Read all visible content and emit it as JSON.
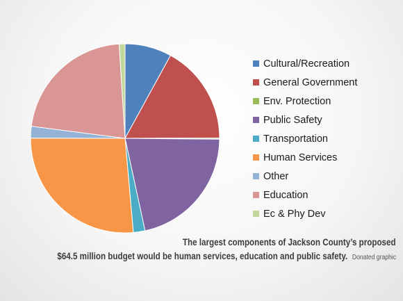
{
  "chart_data": {
    "type": "pie",
    "title": "",
    "legend_position": "right",
    "slices": [
      {
        "label": "Cultural/Recreation",
        "value": 8.0,
        "color": "#4f81bd"
      },
      {
        "label": "General Government",
        "value": 17.0,
        "color": "#c0504d"
      },
      {
        "label": "Env. Protection",
        "value": 0.2,
        "color": "#9bbb59"
      },
      {
        "label": "Public Safety",
        "value": 21.5,
        "color": "#8064a2"
      },
      {
        "label": "Transportation",
        "value": 2.0,
        "color": "#4bacc6"
      },
      {
        "label": "Human Services",
        "value": 26.5,
        "color": "#f79646"
      },
      {
        "label": "Other",
        "value": 2.0,
        "color": "#95b3d7"
      },
      {
        "label": "Education",
        "value": 22.0,
        "color": "#d99694"
      },
      {
        "label": "Ec & Phy Dev",
        "value": 1.0,
        "color": "#c3d69b"
      }
    ]
  },
  "caption": {
    "line1": "The largest components of Jackson County’s proposed",
    "line2": "$64.5 million budget would be human services, education and public safety.",
    "credit": "Donated graphic"
  }
}
